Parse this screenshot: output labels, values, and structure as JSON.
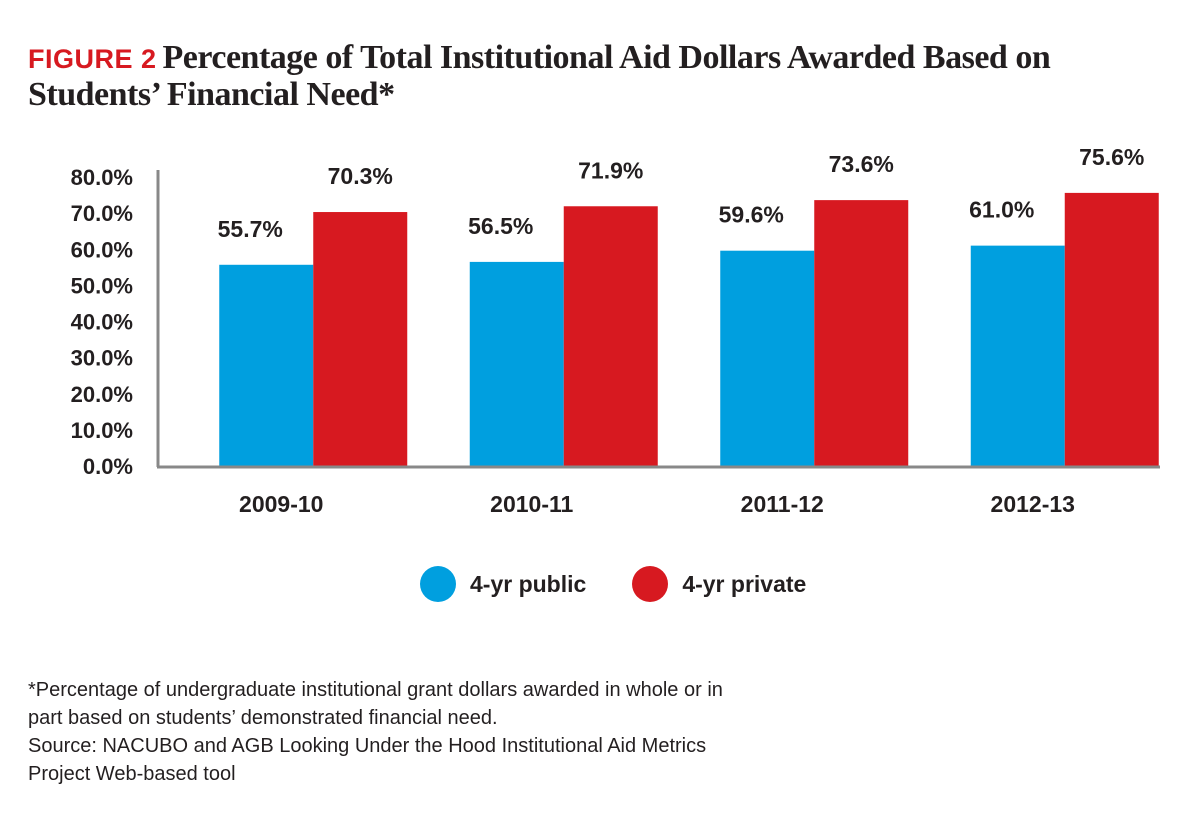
{
  "figure_label": "FIGURE 2",
  "title": "Percentage of Total Institutional Aid Dollars Awarded Based on Students’ Financial Need*",
  "colors": {
    "public": "#009fdf",
    "private": "#d71920",
    "axis": "#888888"
  },
  "chart_data": {
    "type": "bar",
    "title": "Percentage of Total Institutional Aid Dollars Awarded Based on Students’ Financial Need*",
    "xlabel": "",
    "ylabel": "",
    "categories": [
      "2009-10",
      "2010-11",
      "2011-12",
      "2012-13"
    ],
    "series": [
      {
        "name": "4-yr public",
        "values": [
          55.7,
          56.5,
          59.6,
          61.0
        ],
        "labels": [
          "55.7%",
          "56.5%",
          "59.6%",
          "61.0%"
        ]
      },
      {
        "name": "4-yr private",
        "values": [
          70.3,
          71.9,
          73.6,
          75.6
        ],
        "labels": [
          "70.3%",
          "71.9%",
          "73.6%",
          "75.6%"
        ]
      }
    ],
    "ylim": [
      0,
      80
    ],
    "yticks": [
      0,
      10,
      20,
      30,
      40,
      50,
      60,
      70,
      80
    ],
    "ytick_labels": [
      "0.0%",
      "10.0%",
      "20.0%",
      "30.0%",
      "40.0%",
      "50.0%",
      "60.0%",
      "70.0%",
      "80.0%"
    ],
    "grid": false,
    "legend_position": "bottom-center"
  },
  "legend": {
    "public_label": "4-yr public",
    "private_label": "4-yr private"
  },
  "footnote": {
    "line1": "*Percentage of undergraduate institutional grant dollars awarded in whole or in",
    "line2": "part based on students’ demonstrated financial need.",
    "line3": "Source: NACUBO and AGB Looking Under the Hood Institutional Aid Metrics",
    "line4": "Project Web-based tool"
  }
}
